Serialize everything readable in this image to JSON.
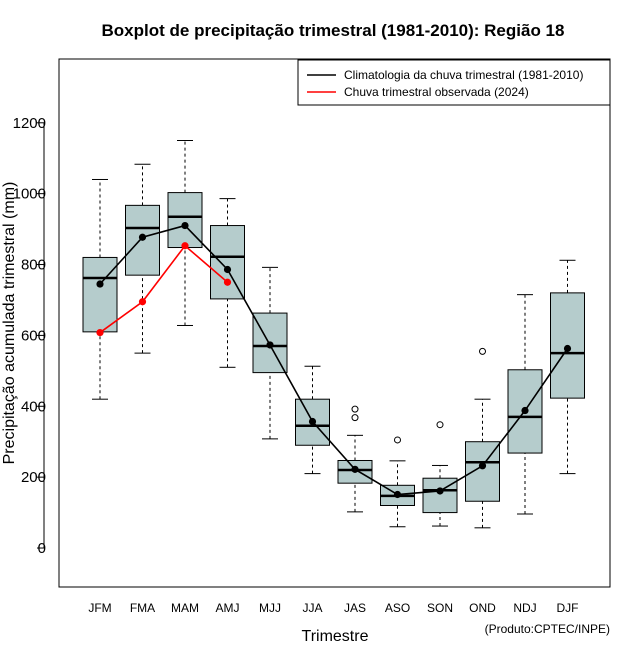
{
  "chart_data": {
    "type": "boxplot",
    "title": "Boxplot de precipitação trimestral (1981-2010): Região 18",
    "xlabel": "Trimestre",
    "ylabel": "Precipitação acumulada trimestral (mm)",
    "credit": "(Produto:CPTEC/INPE)",
    "ylim": [
      -110,
      1380
    ],
    "yticks": [
      0,
      200,
      400,
      600,
      800,
      1000,
      1200
    ],
    "categories": [
      "JFM",
      "FMA",
      "MAM",
      "AMJ",
      "MJJ",
      "JJA",
      "JAS",
      "ASO",
      "SON",
      "OND",
      "NDJ",
      "DJF"
    ],
    "boxes": [
      {
        "low": 420,
        "q1": 610,
        "median": 762,
        "q3": 820,
        "high": 1040,
        "outliers": []
      },
      {
        "low": 550,
        "q1": 770,
        "median": 903,
        "q3": 967,
        "high": 1083,
        "outliers": []
      },
      {
        "low": 628,
        "q1": 848,
        "median": 935,
        "q3": 1003,
        "high": 1150,
        "outliers": []
      },
      {
        "low": 510,
        "q1": 703,
        "median": 822,
        "q3": 910,
        "high": 986,
        "outliers": []
      },
      {
        "low": 308,
        "q1": 495,
        "median": 570,
        "q3": 663,
        "high": 792,
        "outliers": []
      },
      {
        "low": 210,
        "q1": 290,
        "median": 345,
        "q3": 420,
        "high": 513,
        "outliers": []
      },
      {
        "low": 102,
        "q1": 183,
        "median": 220,
        "q3": 247,
        "high": 318,
        "outliers": [
          368,
          392
        ]
      },
      {
        "low": 60,
        "q1": 120,
        "median": 147,
        "q3": 177,
        "high": 246,
        "outliers": [
          305
        ]
      },
      {
        "low": 62,
        "q1": 100,
        "median": 163,
        "q3": 197,
        "high": 233,
        "outliers": [
          348
        ]
      },
      {
        "low": 57,
        "q1": 132,
        "median": 242,
        "q3": 300,
        "high": 420,
        "outliers": [
          555
        ]
      },
      {
        "low": 96,
        "q1": 268,
        "median": 370,
        "q3": 503,
        "high": 715,
        "outliers": []
      },
      {
        "low": 210,
        "q1": 423,
        "median": 550,
        "q3": 720,
        "high": 812,
        "outliers": []
      }
    ],
    "series": [
      {
        "name": "Climatologia da chuva trimestral (1981-2010)",
        "color": "#000000",
        "values": [
          745,
          877,
          910,
          786,
          573,
          357,
          222,
          151,
          161,
          232,
          388,
          563
        ]
      },
      {
        "name": "Chuva trimestral observada (2024)",
        "color": "#ff0000",
        "values": [
          608,
          695,
          853,
          750,
          null,
          null,
          null,
          null,
          null,
          null,
          null,
          null
        ]
      }
    ],
    "box_fill": "#b5cccc",
    "legend_position": "top-right"
  }
}
